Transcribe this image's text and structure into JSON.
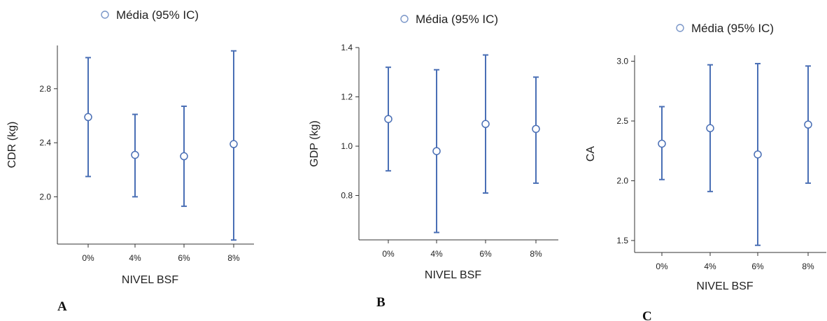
{
  "chart_data": [
    {
      "type": "errorbar",
      "panel_label": "A",
      "legend": "Média (95% IC)",
      "xlabel": "NIVEL BSF",
      "ylabel": "CDR (kg)",
      "categories": [
        "0%",
        "4%",
        "6%",
        "8%"
      ],
      "mean": [
        2.59,
        2.31,
        2.3,
        2.39
      ],
      "lower": [
        2.15,
        2.0,
        1.93,
        1.68
      ],
      "upper": [
        3.03,
        2.61,
        2.67,
        3.08
      ],
      "yticks": [
        2.0,
        2.4,
        2.8
      ],
      "ytick_labels": [
        "2.0",
        "2.4",
        "2.8"
      ],
      "ylim": [
        1.65,
        3.12
      ],
      "color": "#4a6fb5"
    },
    {
      "type": "errorbar",
      "panel_label": "B",
      "legend": "Média (95% IC)",
      "xlabel": "NIVEL BSF",
      "ylabel": "GDP (kg)",
      "categories": [
        "0%",
        "4%",
        "6%",
        "8%"
      ],
      "mean": [
        1.11,
        0.98,
        1.09,
        1.07
      ],
      "lower": [
        0.9,
        0.65,
        0.81,
        0.85
      ],
      "upper": [
        1.32,
        1.31,
        1.37,
        1.28
      ],
      "yticks": [
        0.8,
        1.0,
        1.2,
        1.4
      ],
      "ytick_labels": [
        "0.8",
        "1.0",
        "1.2",
        "1.4"
      ],
      "ylim": [
        0.62,
        1.4
      ],
      "color": "#4a6fb5"
    },
    {
      "type": "errorbar",
      "panel_label": "C",
      "legend": "Média (95% IC)",
      "xlabel": "NIVEL BSF",
      "ylabel": "CA",
      "categories": [
        "0%",
        "4%",
        "6%",
        "8%"
      ],
      "mean": [
        2.31,
        2.44,
        2.22,
        2.47
      ],
      "lower": [
        2.01,
        1.91,
        1.46,
        1.98
      ],
      "upper": [
        2.62,
        2.97,
        2.98,
        2.96
      ],
      "yticks": [
        1.5,
        2.0,
        2.5,
        3.0
      ],
      "ytick_labels": [
        "1.5",
        "2.0",
        "2.5",
        "3.0"
      ],
      "ylim": [
        1.4,
        3.05
      ],
      "color": "#4a6fb5"
    }
  ]
}
